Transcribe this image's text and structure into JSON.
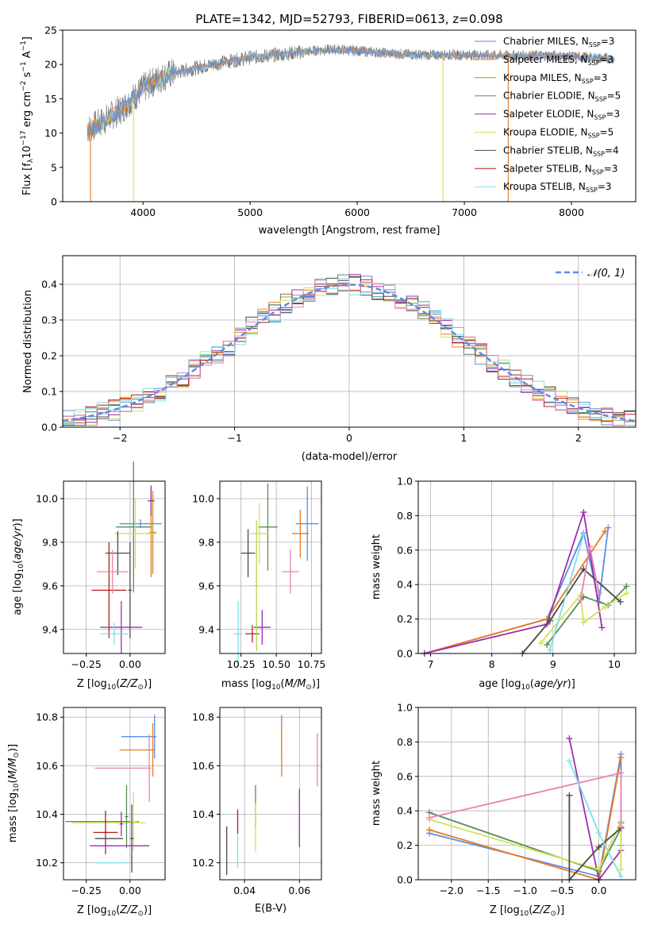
{
  "colors": {
    "chabrier_miles": "#5b8ee6",
    "salpeter_miles": "#ea7a1e",
    "kroupa_miles": "#c8861e",
    "chabrier_elodie": "#5a8c5a",
    "salpeter_elodie": "#9b2fae",
    "kroupa_elodie": "#d4e157",
    "chabrier_stelib": "#4a4a4a",
    "salpeter_stelib": "#b71c1c",
    "kroupa_stelib": "#80deea",
    "gauss": "#5b8ee6",
    "pink": "#e683b4",
    "lime": "#b5d645",
    "grid": "#b0b0b0"
  },
  "chart_data": [
    {
      "id": "spectrum",
      "type": "line",
      "title": "PLATE=1342, MJD=52793, FIBERID=0613, z=0.098",
      "xlabel": "wavelength [Angstrom, rest frame]",
      "ylabel": "Flux [f_λ 10^-17 erg cm^-2 s^-1 A^-1]",
      "xlim": [
        3250,
        8600
      ],
      "ylim": [
        0,
        25
      ],
      "xticks": [
        "4000",
        "5000",
        "6000",
        "7000",
        "8000"
      ],
      "yticks": [
        "0",
        "5",
        "10",
        "15",
        "20",
        "25"
      ],
      "legend_position": "right",
      "legend": [
        {
          "base": "Chabrier MILES, N",
          "sub": "SSP",
          "tail": "=3"
        },
        {
          "base": "Salpeter MILES, N",
          "sub": "SSP",
          "tail": "=3"
        },
        {
          "base": "Kroupa MILES, N",
          "sub": "SSP",
          "tail": "=3"
        },
        {
          "base": "Chabrier ELODIE, N",
          "sub": "SSP",
          "tail": "=5"
        },
        {
          "base": "Salpeter ELODIE, N",
          "sub": "SSP",
          "tail": "=3"
        },
        {
          "base": "Kroupa ELODIE, N",
          "sub": "SSP",
          "tail": "=5"
        },
        {
          "base": "Chabrier STELIB, N",
          "sub": "SSP",
          "tail": "=4"
        },
        {
          "base": "Salpeter STELIB, N",
          "sub": "SSP",
          "tail": "=3"
        },
        {
          "base": "Kroupa STELIB, N",
          "sub": "SSP",
          "tail": "=3"
        }
      ],
      "continuum": {
        "x": [
          3480,
          3600,
          3700,
          3800,
          3900,
          4000,
          4100,
          4200,
          4300,
          4500,
          4700,
          5000,
          5300,
          5600,
          5800,
          6000,
          6300,
          6600,
          7000,
          7400,
          7800,
          8200,
          8400
        ],
        "y": [
          10.5,
          11.5,
          12.5,
          13.5,
          15.0,
          16.5,
          17.5,
          18.3,
          18.8,
          19.5,
          20.2,
          21.0,
          21.5,
          22.0,
          22.2,
          22.0,
          21.6,
          21.4,
          21.4,
          21.3,
          21.3,
          21.0,
          20.8
        ]
      },
      "vertical_drops": [
        {
          "x": 3510,
          "color_key": "salpeter_miles"
        },
        {
          "x": 3910,
          "color_key": "kroupa_elodie"
        },
        {
          "x": 6800,
          "color_key": "kroupa_elodie"
        },
        {
          "x": 7410,
          "color_key": "salpeter_miles"
        }
      ]
    },
    {
      "id": "residuals",
      "type": "line",
      "xlabel": "(data-model)/error",
      "ylabel": "Normed distribution",
      "xlim": [
        -2.5,
        2.5
      ],
      "ylim": [
        0,
        0.48
      ],
      "xticks": [
        "−2",
        "−1",
        "0",
        "1",
        "2"
      ],
      "yticks": [
        "0.0",
        "0.1",
        "0.2",
        "0.3",
        "0.4"
      ],
      "grid": true,
      "legend": "𝒩(0, 1)",
      "legend_position": "top-right",
      "gaussian": {
        "mean": 0,
        "sigma": 1
      },
      "bin_width": 0.1
    },
    {
      "id": "age_vs_Z",
      "type": "scatter",
      "xlabel": "Z [log10(Z/Z⊙)]",
      "ylabel": "age  [log10(age/yr)]",
      "xlim": [
        -0.38,
        0.2
      ],
      "ylim": [
        9.29,
        10.08
      ],
      "xticks": [
        "−0.25",
        "0.00"
      ],
      "yticks": [
        "9.4",
        "9.6",
        "9.8",
        "10.0"
      ],
      "points": [
        {
          "x": 0.06,
          "y": 9.885,
          "xerr": 0.12,
          "yerr": 0.02,
          "color_key": "chabrier_miles"
        },
        {
          "x": 0.12,
          "y": 9.84,
          "xerr": 0.03,
          "yerr": 0.2,
          "color_key": "salpeter_miles"
        },
        {
          "x": 0.13,
          "y": 9.845,
          "xerr": 0.02,
          "yerr": 0.19,
          "color_key": "kroupa_miles"
        },
        {
          "x": 0.02,
          "y": 9.87,
          "xerr": 0.1,
          "yerr": 0.3,
          "color_key": "chabrier_elodie"
        },
        {
          "x": 0.12,
          "y": 9.99,
          "xerr": 0.02,
          "yerr": 0.07,
          "color_key": "salpeter_elodie"
        },
        {
          "x": 0.03,
          "y": 9.84,
          "xerr": 0.12,
          "yerr": 0.16,
          "color_key": "kroupa_elodie"
        },
        {
          "x": -0.07,
          "y": 9.75,
          "xerr": 0.07,
          "yerr": 0.1,
          "color_key": "chabrier_stelib"
        },
        {
          "x": -0.12,
          "y": 9.58,
          "xerr": 0.1,
          "yerr": 0.22,
          "color_key": "salpeter_stelib"
        },
        {
          "x": -0.1,
          "y": 9.665,
          "xerr": 0.09,
          "yerr": 0.1,
          "color_key": "pink"
        },
        {
          "x": -0.05,
          "y": 9.41,
          "xerr": 0.12,
          "yerr": 0.12,
          "color_key": "salpeter_elodie"
        },
        {
          "x": -0.09,
          "y": 9.38,
          "xerr": 0.08,
          "yerr": 0.05,
          "color_key": "kroupa_stelib"
        },
        {
          "x": 0.0,
          "y": 9.58,
          "xerr": 0.01,
          "yerr": 0.22,
          "color_key": "chabrier_stelib"
        }
      ]
    },
    {
      "id": "age_vs_mass",
      "type": "scatter",
      "xlabel": "mass [log10(M/M⊙)]",
      "ylabel": "",
      "xlim": [
        10.1,
        10.82
      ],
      "ylim": [
        9.29,
        10.08
      ],
      "xticks": [
        "10.25",
        "10.50",
        "10.75"
      ],
      "yticks": [
        "9.4",
        "9.6",
        "9.8",
        "10.0"
      ],
      "points": [
        {
          "x": 10.72,
          "y": 9.885,
          "xerr": 0.08,
          "yerr": 0.17,
          "color_key": "chabrier_miles"
        },
        {
          "x": 10.67,
          "y": 9.84,
          "xerr": 0.06,
          "yerr": 0.11,
          "color_key": "salpeter_miles"
        },
        {
          "x": 10.44,
          "y": 9.87,
          "xerr": 0.07,
          "yerr": 0.2,
          "color_key": "chabrier_elodie"
        },
        {
          "x": 10.38,
          "y": 9.84,
          "xerr": 0.07,
          "yerr": 0.14,
          "color_key": "kroupa_elodie"
        },
        {
          "x": 10.6,
          "y": 9.665,
          "xerr": 0.06,
          "yerr": 0.1,
          "color_key": "pink"
        },
        {
          "x": 10.3,
          "y": 9.75,
          "xerr": 0.05,
          "yerr": 0.11,
          "color_key": "chabrier_stelib"
        },
        {
          "x": 10.33,
          "y": 9.38,
          "xerr": 0.05,
          "yerr": 0.04,
          "color_key": "salpeter_stelib"
        },
        {
          "x": 10.4,
          "y": 9.41,
          "xerr": 0.06,
          "yerr": 0.08,
          "color_key": "salpeter_elodie"
        },
        {
          "x": 10.23,
          "y": 9.38,
          "xerr": 0.03,
          "yerr": 0.15,
          "color_key": "kroupa_stelib"
        },
        {
          "x": 10.36,
          "y": 9.6,
          "xerr": 0.02,
          "yerr": 0.3,
          "color_key": "lime"
        }
      ]
    },
    {
      "id": "weight_vs_age",
      "type": "line",
      "xlabel": "age  [log10(age/yr)]",
      "ylabel": "mass weight",
      "xlim": [
        6.8,
        10.35
      ],
      "ylim": [
        0,
        1.0
      ],
      "xticks": [
        "7",
        "8",
        "9",
        "10"
      ],
      "yticks": [
        "0.0",
        "0.2",
        "0.4",
        "0.6",
        "0.8",
        "1.0"
      ],
      "grid": true,
      "series": [
        {
          "color_key": "chabrier_miles",
          "x": [
            6.9,
            8.9,
            9.5,
            9.75,
            9.9
          ],
          "y": [
            0.0,
            0.2,
            0.7,
            0.3,
            0.73
          ]
        },
        {
          "color_key": "salpeter_miles",
          "x": [
            6.9,
            8.9,
            9.85
          ],
          "y": [
            0.0,
            0.2,
            0.71
          ]
        },
        {
          "color_key": "salpeter_elodie",
          "x": [
            6.9,
            8.9,
            9.5,
            9.8
          ],
          "y": [
            0.0,
            0.17,
            0.82,
            0.15
          ]
        },
        {
          "color_key": "chabrier_elodie",
          "x": [
            8.9,
            9.5,
            9.9,
            10.2
          ],
          "y": [
            0.05,
            0.33,
            0.28,
            0.39
          ]
        },
        {
          "color_key": "kroupa_elodie",
          "x": [
            8.8,
            9.45,
            9.5,
            9.85,
            10.2
          ],
          "y": [
            0.06,
            0.34,
            0.18,
            0.27,
            0.35
          ]
        },
        {
          "color_key": "chabrier_stelib",
          "x": [
            8.5,
            8.95,
            9.5,
            10.1
          ],
          "y": [
            0.0,
            0.19,
            0.49,
            0.3
          ]
        },
        {
          "color_key": "pink",
          "x": [
            9.45,
            9.6,
            9.75
          ],
          "y": [
            0.31,
            0.62,
            0.35
          ]
        },
        {
          "color_key": "kroupa_stelib",
          "x": [
            8.95,
            9.5
          ],
          "y": [
            0.02,
            0.69
          ]
        }
      ]
    },
    {
      "id": "mass_vs_Z",
      "type": "scatter",
      "xlabel": "Z [log10(Z/Z⊙)]",
      "ylabel": "mass [log10(M/M⊙)]",
      "xlim": [
        -0.38,
        0.2
      ],
      "ylim": [
        10.13,
        10.84
      ],
      "xticks": [
        "−0.25",
        "0.00"
      ],
      "yticks": [
        "10.2",
        "10.4",
        "10.6",
        "10.8"
      ],
      "points": [
        {
          "x": 0.05,
          "y": 10.72,
          "xerr": 0.1,
          "yerr": 0.01,
          "color_key": "chabrier_miles"
        },
        {
          "x": 0.14,
          "y": 10.72,
          "xerr": 0.01,
          "yerr": 0.09,
          "color_key": "chabrier_miles"
        },
        {
          "x": 0.04,
          "y": 10.665,
          "xerr": 0.1,
          "yerr": 0.01,
          "color_key": "salpeter_miles"
        },
        {
          "x": 0.13,
          "y": 10.665,
          "xerr": 0.01,
          "yerr": 0.11,
          "color_key": "salpeter_miles"
        },
        {
          "x": 0.11,
          "y": 10.59,
          "xerr": 0.01,
          "yerr": 0.14,
          "color_key": "pink"
        },
        {
          "x": -0.04,
          "y": 10.59,
          "xerr": 0.16,
          "yerr": 0.01,
          "color_key": "pink"
        },
        {
          "x": -0.16,
          "y": 10.37,
          "xerr": 0.21,
          "yerr": 0.01,
          "color_key": "chabrier_elodie"
        },
        {
          "x": -0.12,
          "y": 10.365,
          "xerr": 0.21,
          "yerr": 0.01,
          "color_key": "kroupa_elodie"
        },
        {
          "x": 0.02,
          "y": 10.37,
          "xerr": 0.02,
          "yerr": 0.12,
          "color_key": "kroupa_elodie"
        },
        {
          "x": -0.02,
          "y": 10.39,
          "xerr": 0.01,
          "yerr": 0.13,
          "color_key": "chabrier_elodie"
        },
        {
          "x": -0.05,
          "y": 10.36,
          "xerr": 0.01,
          "yerr": 0.05,
          "color_key": "salpeter_elodie"
        },
        {
          "x": -0.14,
          "y": 10.325,
          "xerr": 0.07,
          "yerr": 0.01,
          "color_key": "salpeter_stelib"
        },
        {
          "x": -0.14,
          "y": 10.325,
          "xerr": 0.01,
          "yerr": 0.09,
          "color_key": "salpeter_stelib"
        },
        {
          "x": -0.12,
          "y": 10.3,
          "xerr": 0.08,
          "yerr": 0.01,
          "color_key": "chabrier_stelib"
        },
        {
          "x": 0.01,
          "y": 10.3,
          "xerr": 0.01,
          "yerr": 0.14,
          "color_key": "chabrier_stelib"
        },
        {
          "x": -0.06,
          "y": 10.27,
          "xerr": 0.17,
          "yerr": 0.01,
          "color_key": "salpeter_elodie"
        },
        {
          "x": -0.14,
          "y": 10.2,
          "xerr": 0.06,
          "yerr": 0.01,
          "color_key": "kroupa_stelib"
        },
        {
          "x": -0.1,
          "y": 10.2,
          "xerr": 0.1,
          "yerr": 0.01,
          "color_key": "kroupa_stelib"
        }
      ]
    },
    {
      "id": "mass_vs_EBV",
      "type": "scatter",
      "xlabel": "E(B-V)",
      "ylabel": "",
      "xlim": [
        0.031,
        0.068
      ],
      "ylim": [
        10.13,
        10.84
      ],
      "xticks": [
        "0.04",
        "0.06"
      ],
      "yticks": [
        "10.2",
        "10.4",
        "10.6",
        "10.8"
      ],
      "points": [
        {
          "x": 0.0535,
          "y": 10.72,
          "yerr": 0.09,
          "color_key": "chabrier_miles"
        },
        {
          "x": 0.0535,
          "y": 10.665,
          "yerr": 0.11,
          "color_key": "salpeter_miles"
        },
        {
          "x": 0.0665,
          "y": 10.625,
          "yerr": 0.11,
          "color_key": "pink"
        },
        {
          "x": 0.044,
          "y": 10.43,
          "yerr": 0.09,
          "color_key": "chabrier_elodie"
        },
        {
          "x": 0.044,
          "y": 10.345,
          "yerr": 0.1,
          "color_key": "kroupa_elodie"
        },
        {
          "x": 0.06,
          "y": 10.385,
          "yerr": 0.12,
          "color_key": "salpeter_elodie"
        },
        {
          "x": 0.0375,
          "y": 10.37,
          "yerr": 0.05,
          "color_key": "salpeter_stelib"
        },
        {
          "x": 0.0375,
          "y": 10.25,
          "yerr": 0.07,
          "color_key": "kroupa_stelib"
        },
        {
          "x": 0.0335,
          "y": 10.25,
          "yerr": 0.1,
          "color_key": "chabrier_stelib"
        }
      ]
    },
    {
      "id": "weight_vs_Z",
      "type": "line",
      "xlabel": "Z [log10(Z/Z⊙)]",
      "ylabel": "mass weight",
      "xlim": [
        -2.45,
        0.5
      ],
      "ylim": [
        0,
        1.0
      ],
      "xticks": [
        "−2.0",
        "−1.5",
        "−1.0",
        "−0.5",
        "0.0"
      ],
      "yticks": [
        "0.0",
        "0.2",
        "0.4",
        "0.6",
        "0.8",
        "1.0"
      ],
      "grid": true,
      "series": [
        {
          "color_key": "chabrier_miles",
          "x": [
            -2.3,
            0.0,
            0.3,
            0.3
          ],
          "y": [
            0.27,
            0.02,
            0.73,
            0.2
          ]
        },
        {
          "color_key": "salpeter_miles",
          "x": [
            -2.3,
            0.0,
            0.3
          ],
          "y": [
            0.29,
            0.0,
            0.71
          ]
        },
        {
          "color_key": "salpeter_elodie",
          "x": [
            -0.4,
            0.0,
            0.3
          ],
          "y": [
            0.82,
            0.0,
            0.17
          ]
        },
        {
          "color_key": "chabrier_elodie",
          "x": [
            -2.3,
            0.0,
            0.3,
            0.3
          ],
          "y": [
            0.39,
            0.05,
            0.3,
            0.33
          ]
        },
        {
          "color_key": "kroupa_elodie",
          "x": [
            -2.3,
            0.0,
            0.3,
            0.3
          ],
          "y": [
            0.35,
            0.06,
            0.34,
            0.06
          ]
        },
        {
          "color_key": "chabrier_stelib",
          "x": [
            -0.4,
            -0.4,
            0.0,
            0.3
          ],
          "y": [
            0.49,
            0.0,
            0.19,
            0.3
          ]
        },
        {
          "color_key": "pink",
          "x": [
            -2.3,
            0.3,
            0.3
          ],
          "y": [
            0.36,
            0.62,
            0.31
          ]
        },
        {
          "color_key": "kroupa_stelib",
          "x": [
            -0.4,
            0.0,
            0.3
          ],
          "y": [
            0.69,
            0.27,
            0.02
          ]
        }
      ]
    }
  ]
}
